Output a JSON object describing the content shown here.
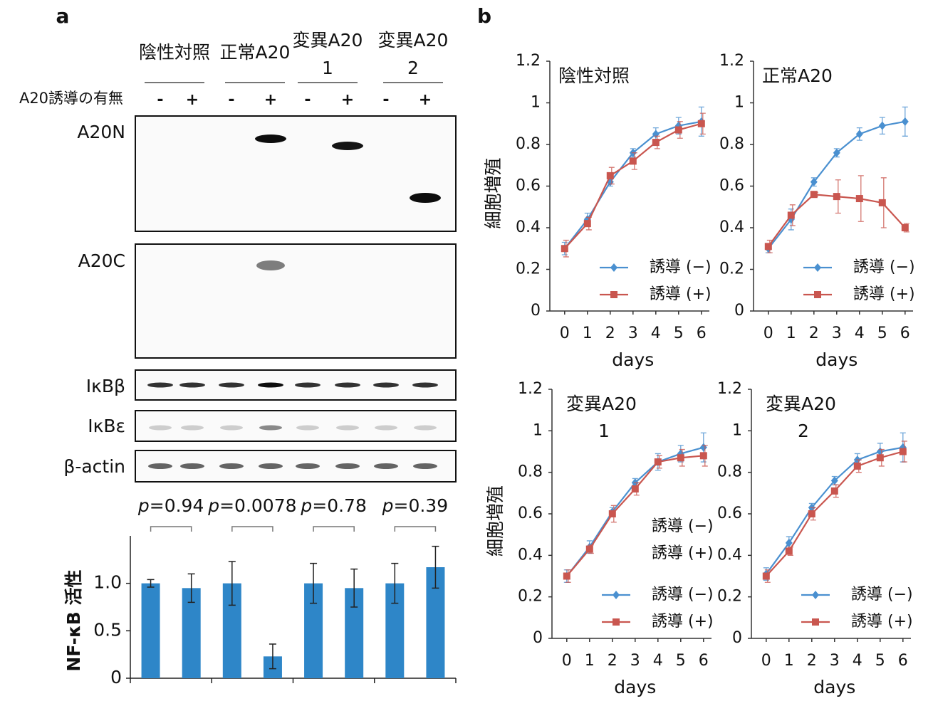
{
  "panels": [
    "a",
    "b"
  ],
  "blots": {
    "groups": [
      [
        "陰性対照"
      ],
      [
        "正常A20"
      ],
      [
        "変異A20",
        "1"
      ],
      [
        "変異A20",
        "2"
      ]
    ],
    "row_label": "A20誘導の有無",
    "induction": [
      "-",
      "+",
      "-",
      "+",
      "-",
      "+",
      "-",
      "+"
    ],
    "rows": [
      "A20N",
      "A20C",
      "IκBβ",
      "IκBε",
      "β-actin"
    ]
  },
  "chart_data": [
    {
      "type": "bar",
      "ylabel": "NF-κB 活性",
      "categories": [
        null,
        null,
        null,
        null,
        null,
        null,
        null,
        null
      ],
      "values": [
        1.0,
        0.95,
        1.0,
        0.23,
        1.0,
        0.95,
        1.0,
        1.17
      ],
      "errors": [
        0.04,
        0.15,
        0.23,
        0.13,
        0.21,
        0.2,
        0.21,
        0.22
      ],
      "color": "#2e86c8",
      "ylim": [
        0,
        1.5
      ],
      "yticks": [
        0,
        0.5,
        {
          "value": 1,
          "label": "1.0"
        }
      ],
      "annotations": [
        {
          "symbol": "p",
          "text": "=0.94"
        },
        {
          "symbol": "p",
          "text": "=0.0078"
        },
        {
          "symbol": "p",
          "text": "=0.78"
        },
        {
          "symbol": "p",
          "text": "=0.39"
        }
      ]
    },
    {
      "type": "line",
      "title": "陰性対照",
      "xlabel": "days",
      "ylabel": "細胞増殖",
      "x": [
        0,
        1,
        2,
        3,
        4,
        5,
        6
      ],
      "xlim": [
        -0.65,
        6.35
      ],
      "xticks": [
        0,
        1,
        2,
        3,
        4,
        5,
        6
      ],
      "ylim": [
        0,
        1.2
      ],
      "yticks": [
        0,
        0.2,
        0.4,
        0.6,
        0.8,
        1,
        1.2
      ],
      "legend": "lower right",
      "series": [
        {
          "name": "誘導 (−)",
          "color": "#4a90d0",
          "marker": "diamond",
          "values": [
            0.3,
            0.44,
            0.62,
            0.76,
            0.85,
            0.89,
            0.91
          ],
          "errors": [
            0.03,
            0.03,
            0.02,
            0.02,
            0.03,
            0.04,
            0.07
          ]
        },
        {
          "name": "誘導 (+)",
          "color": "#c9564f",
          "marker": "square",
          "values": [
            0.3,
            0.42,
            0.65,
            0.72,
            0.81,
            0.87,
            0.9
          ],
          "errors": [
            0.04,
            0.03,
            0.04,
            0.04,
            0.03,
            0.04,
            0.05
          ]
        }
      ]
    },
    {
      "type": "line",
      "title": "正常A20",
      "xlabel": "days",
      "x": [
        0,
        1,
        2,
        3,
        4,
        5,
        6
      ],
      "xlim": [
        -0.65,
        6.35
      ],
      "xticks": [
        0,
        1,
        2,
        3,
        4,
        5,
        6
      ],
      "ylim": [
        0,
        1.2
      ],
      "yticks": [
        0,
        0.2,
        0.4,
        0.6,
        0.8,
        1,
        1.2
      ],
      "legend": "lower right",
      "series": [
        {
          "name": "誘導 (−)",
          "color": "#4a90d0",
          "marker": "diamond",
          "values": [
            0.3,
            0.44,
            0.62,
            0.76,
            0.85,
            0.89,
            0.91
          ],
          "errors": [
            0.02,
            0.05,
            0.02,
            0.02,
            0.03,
            0.04,
            0.07
          ]
        },
        {
          "name": "誘導 (+)",
          "color": "#c9564f",
          "marker": "square",
          "values": [
            0.31,
            0.46,
            0.56,
            0.55,
            0.54,
            0.52,
            0.4
          ],
          "errors": [
            0.03,
            0.05,
            0.01,
            0.08,
            0.11,
            0.12,
            0.02
          ]
        }
      ]
    },
    {
      "type": "line",
      "title": "変異A20",
      "subtitle": "1",
      "xlabel": "days",
      "ylabel": "細胞増殖",
      "x": [
        0,
        1,
        2,
        3,
        4,
        5,
        6
      ],
      "xlim": [
        -0.65,
        6.35
      ],
      "xticks": [
        0,
        1,
        2,
        3,
        4,
        5,
        6
      ],
      "ylim": [
        0,
        1.2
      ],
      "yticks": [
        0,
        0.2,
        0.4,
        0.6,
        0.8,
        1,
        1.2
      ],
      "legend": "lower right",
      "annotations": [
        "誘導 (−)",
        "誘導 (+)"
      ],
      "series": [
        {
          "name": "誘導 (−)",
          "color": "#4a90d0",
          "marker": "diamond",
          "values": [
            0.3,
            0.44,
            0.61,
            0.75,
            0.85,
            0.89,
            0.92
          ],
          "errors": [
            0.03,
            0.03,
            0.02,
            0.02,
            0.04,
            0.04,
            0.07
          ]
        },
        {
          "name": "誘導 (+)",
          "color": "#c9564f",
          "marker": "square",
          "values": [
            0.3,
            0.43,
            0.6,
            0.72,
            0.85,
            0.87,
            0.88
          ],
          "errors": [
            0.03,
            0.02,
            0.04,
            0.03,
            0.03,
            0.04,
            0.05
          ]
        }
      ]
    },
    {
      "type": "line",
      "title": "変異A20",
      "subtitle": "2",
      "xlabel": "days",
      "x": [
        0,
        1,
        2,
        3,
        4,
        5,
        6
      ],
      "xlim": [
        -0.65,
        6.35
      ],
      "xticks": [
        0,
        1,
        2,
        3,
        4,
        5,
        6
      ],
      "ylim": [
        0,
        1.2
      ],
      "yticks": [
        0,
        0.2,
        0.4,
        0.6,
        0.8,
        1,
        1.2
      ],
      "legend": "lower right",
      "series": [
        {
          "name": "誘導 (−)",
          "color": "#4a90d0",
          "marker": "diamond",
          "values": [
            0.31,
            0.46,
            0.63,
            0.76,
            0.86,
            0.9,
            0.92
          ],
          "errors": [
            0.03,
            0.03,
            0.02,
            0.02,
            0.03,
            0.04,
            0.07
          ]
        },
        {
          "name": "誘導 (+)",
          "color": "#c9564f",
          "marker": "square",
          "values": [
            0.3,
            0.42,
            0.6,
            0.71,
            0.83,
            0.87,
            0.9
          ],
          "errors": [
            0.03,
            0.02,
            0.03,
            0.03,
            0.03,
            0.04,
            0.05
          ]
        }
      ]
    }
  ]
}
